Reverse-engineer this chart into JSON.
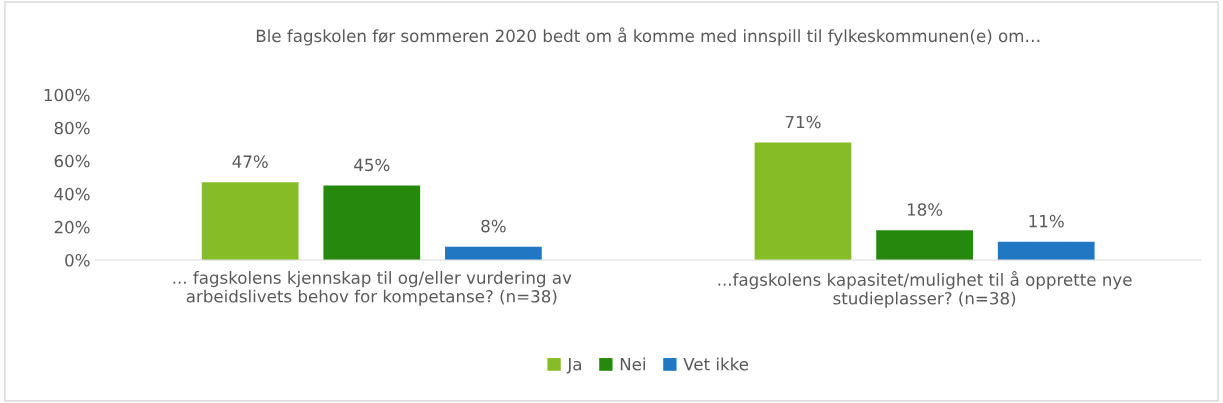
{
  "chart_data": {
    "type": "bar",
    "title": "Ble fagskolen før sommeren 2020 bedt om å komme med innspill til fylkeskommunen(e) om…",
    "categories": [
      "... fagskolens kjennskap til og/eller vurdering av\narbeidslivets behov for kompetanse? (n=38)",
      "...fagskolens kapasitet/mulighet til å opprette nye\nstudieplasser? (n=38)"
    ],
    "series": [
      {
        "name": "Ja",
        "color": "#86bc25",
        "values": [
          47,
          71
        ],
        "value_labels": [
          "47%",
          "71%"
        ]
      },
      {
        "name": "Nei",
        "color": "#26890d",
        "values": [
          45,
          18
        ],
        "value_labels": [
          "45%",
          "18%"
        ]
      },
      {
        "name": "Vet ikke",
        "color": "#1f78c1",
        "values": [
          8,
          11
        ],
        "value_labels": [
          "8%",
          "11%"
        ]
      }
    ],
    "ylim": [
      0,
      100
    ],
    "yticks": [
      {
        "value": 0,
        "label": "0%"
      },
      {
        "value": 20,
        "label": "20%"
      },
      {
        "value": 40,
        "label": "40%"
      },
      {
        "value": 60,
        "label": "60%"
      },
      {
        "value": 80,
        "label": "80%"
      },
      {
        "value": 100,
        "label": "100%"
      }
    ],
    "grid": false,
    "legend": "bottom"
  }
}
